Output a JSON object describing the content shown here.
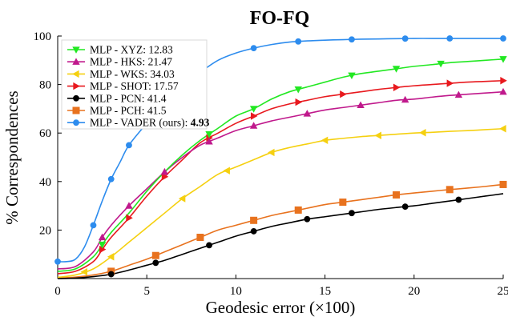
{
  "chart_data": {
    "type": "line",
    "title": "FO-FQ",
    "xlabel": "Geodesic error (×100)",
    "ylabel": "% Correspondences",
    "xlim": [
      0,
      25
    ],
    "ylim": [
      0,
      100
    ],
    "x_ticks": [
      "0",
      "5",
      "10",
      "15",
      "20",
      "25"
    ],
    "y_ticks": [
      "20",
      "40",
      "60",
      "80",
      "100"
    ],
    "grid": false,
    "legend_placement": "top-left",
    "series": [
      {
        "name": "MLP - XYZ: ",
        "score": "12.83",
        "color": "#22e822",
        "marker": "triangle-down",
        "x": [
          0,
          1,
          2,
          2.5,
          3,
          4,
          5,
          6,
          7,
          8,
          9,
          10,
          11,
          12,
          13,
          14,
          15,
          16,
          17,
          18,
          19,
          20,
          21,
          22,
          23,
          24,
          25
        ],
        "y": [
          3,
          4,
          9,
          14,
          19,
          27,
          36,
          44,
          51,
          57,
          62,
          67,
          70,
          74,
          77,
          79,
          81,
          83,
          84.5,
          85.5,
          86.5,
          87.5,
          88.2,
          89,
          89.5,
          90,
          90.5
        ]
      },
      {
        "name": "MLP - HKS: ",
        "score": "21.47",
        "color": "#c0198c",
        "marker": "triangle-up",
        "x": [
          0,
          1,
          2,
          2.5,
          3,
          4,
          5,
          6,
          7,
          8,
          9,
          10,
          11,
          12,
          13,
          14,
          15,
          16,
          17,
          18,
          19,
          20,
          21,
          22,
          23,
          24,
          25
        ],
        "y": [
          4,
          5,
          11,
          17,
          22,
          30,
          37,
          44,
          50,
          55,
          58,
          61,
          63,
          65,
          66.5,
          68,
          69.5,
          70.5,
          71.5,
          72.5,
          73.5,
          74,
          74.8,
          75.5,
          76,
          76.5,
          77
        ]
      },
      {
        "name": "MLP - WKS: ",
        "score": "34.03",
        "color": "#f5d010",
        "marker": "triangle-left",
        "x": [
          0,
          1,
          2,
          3,
          4,
          5,
          6,
          7,
          8,
          9,
          10,
          11,
          12,
          13,
          14,
          15,
          16,
          17,
          18,
          19,
          20,
          21,
          22,
          23,
          24,
          25
        ],
        "y": [
          0.5,
          1.5,
          4,
          9,
          15,
          21,
          27,
          33,
          38,
          43,
          46,
          49,
          52,
          54,
          55.5,
          57,
          57.8,
          58.5,
          59,
          59.5,
          60,
          60.3,
          60.7,
          61,
          61.4,
          61.8
        ]
      },
      {
        "name": "MLP - SHOT: ",
        "score": "17.57",
        "color": "#e8191e",
        "marker": "triangle-right",
        "x": [
          0,
          1,
          2,
          2.5,
          3,
          4,
          5,
          6,
          7,
          8,
          9,
          10,
          11,
          12,
          13,
          14,
          15,
          16,
          17,
          18,
          19,
          20,
          21,
          22,
          23,
          24,
          25
        ],
        "y": [
          2,
          3,
          7,
          12,
          17,
          25,
          34,
          42,
          49,
          56,
          60,
          64,
          67,
          70,
          72,
          73.5,
          75,
          76,
          77,
          78,
          78.8,
          79.5,
          80,
          80.5,
          81,
          81.3,
          81.6
        ]
      },
      {
        "name": "MLP - PCN: ",
        "score": "41.4",
        "color": "#000000",
        "marker": "circle",
        "x": [
          0,
          1,
          2,
          3,
          4,
          5,
          6,
          7,
          8,
          9,
          10,
          11,
          12,
          13,
          14,
          15,
          16,
          17,
          18,
          19,
          20,
          21,
          22,
          23,
          24,
          25
        ],
        "y": [
          0,
          0.2,
          0.8,
          1.8,
          3.5,
          5.5,
          7.5,
          10,
          12.5,
          15,
          17.5,
          19.5,
          21.5,
          23,
          24.5,
          25.5,
          26.5,
          27.5,
          28.5,
          29.3,
          30,
          31,
          32,
          33,
          34,
          35
        ]
      },
      {
        "name": "MLP - PCH: ",
        "score": "41.5",
        "color": "#e8721e",
        "marker": "square",
        "x": [
          0,
          1,
          2,
          3,
          4,
          5,
          6,
          7,
          8,
          9,
          10,
          11,
          12,
          13,
          14,
          15,
          16,
          17,
          18,
          19,
          20,
          21,
          22,
          23,
          24,
          25
        ],
        "y": [
          0.2,
          0.6,
          1.5,
          3,
          5.5,
          8,
          11,
          14,
          17,
          20,
          22,
          24,
          26,
          27.5,
          29,
          30.5,
          31.5,
          32.5,
          33.5,
          34.5,
          35.3,
          36,
          36.7,
          37.3,
          38,
          38.8
        ]
      },
      {
        "name": "MLP - VADER (ours): ",
        "score": "4.93",
        "color": "#2d8cee",
        "marker": "circle",
        "x": [
          0,
          0.5,
          1,
          1.5,
          2,
          2.5,
          3,
          3.5,
          4,
          5,
          6,
          7,
          8,
          9,
          10,
          11,
          12,
          13,
          14,
          15,
          16,
          17,
          18,
          19,
          20,
          21,
          22,
          23,
          24,
          25
        ],
        "y": [
          7,
          7,
          8,
          13,
          22,
          32,
          41,
          48,
          55,
          64,
          72,
          79,
          85,
          90,
          93,
          95,
          96.5,
          97.5,
          98,
          98.3,
          98.5,
          98.7,
          98.8,
          98.9,
          99,
          99,
          99,
          99,
          99,
          99
        ]
      }
    ],
    "marker_x": {
      "MLP - XYZ: ": [
        2.5,
        8.5,
        11,
        13.5,
        16.5,
        19,
        21.5,
        25
      ],
      "MLP - HKS: ": [
        2.5,
        4,
        6,
        8.5,
        11,
        14,
        17,
        19.5,
        22.5,
        25
      ],
      "MLP - WKS: ": [
        1.5,
        3,
        7,
        9.5,
        12,
        15,
        18,
        20.5,
        25
      ],
      "MLP - SHOT: ": [
        2.5,
        4,
        6,
        8.5,
        11,
        13.5,
        16,
        19,
        22,
        25
      ],
      "MLP - PCN: ": [
        3,
        5.5,
        8.5,
        11,
        14,
        16.5,
        19.5,
        22.5
      ],
      "MLP - PCH: ": [
        3,
        5.5,
        8,
        11,
        13.5,
        16,
        19,
        22,
        25
      ],
      "MLP - VADER (ours): ": [
        0,
        2,
        3,
        4,
        6,
        8,
        11,
        13.5,
        16.5,
        19.5,
        22,
        25
      ]
    }
  }
}
